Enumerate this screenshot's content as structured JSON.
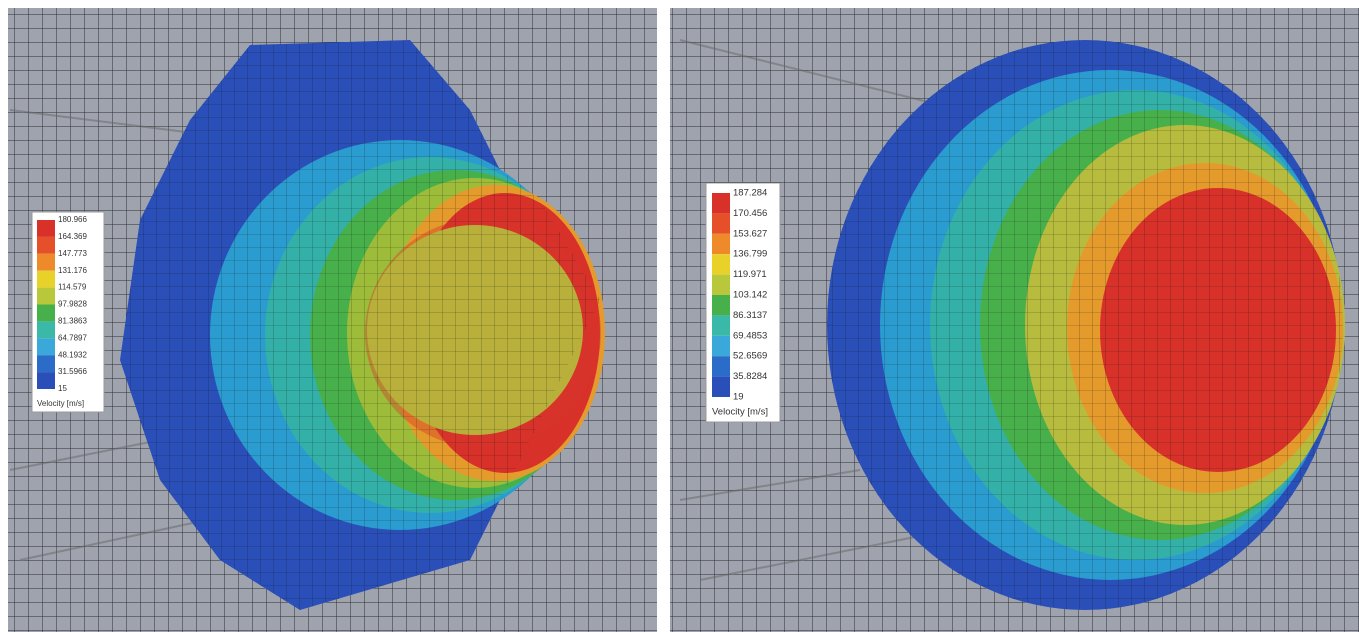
{
  "panels": [
    {
      "legend": {
        "labels": [
          "180.966",
          "164.369",
          "147.773",
          "131.176",
          "114.579",
          "97.9828",
          "81.3863",
          "64.7897",
          "48.1932",
          "31.5966",
          "15"
        ],
        "title": "Velocity [m/s]"
      }
    },
    {
      "legend": {
        "labels": [
          "187.284",
          "170.456",
          "153.627",
          "136.799",
          "119.971",
          "103.142",
          "86.3137",
          "69.4853",
          "52.6569",
          "35.8284",
          "19"
        ],
        "title": "Velocity [m/s]"
      }
    }
  ]
}
